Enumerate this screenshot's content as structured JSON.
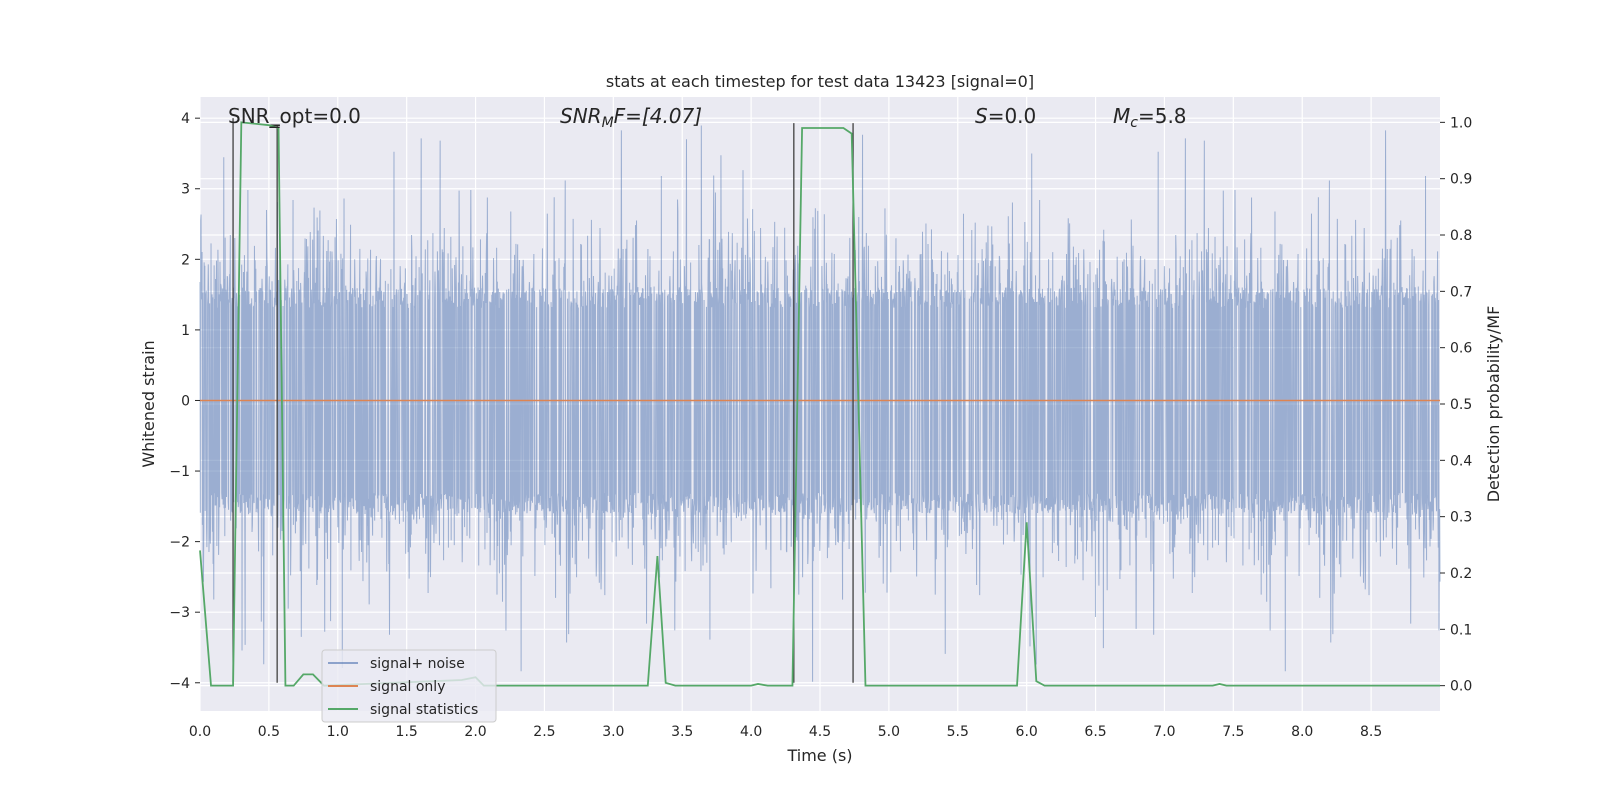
{
  "chart_data": {
    "type": "line",
    "title": "stats at each timestep for test data 13423 [signal=0]",
    "xlabel": "Time (s)",
    "ylabel": "Whitened strain",
    "y2label": "Detection probability/MF",
    "xlim": [
      0,
      9.0
    ],
    "ylim": [
      -4.4,
      4.3
    ],
    "y2lim": [
      -0.045,
      1.045
    ],
    "x_ticks": [
      0.0,
      0.5,
      1.0,
      1.5,
      2.0,
      2.5,
      3.0,
      3.5,
      4.0,
      4.5,
      5.0,
      5.5,
      6.0,
      6.5,
      7.0,
      7.5,
      8.0,
      8.5
    ],
    "x_tick_labels": [
      "0.0",
      "0.5",
      "1.0",
      "1.5",
      "2.0",
      "2.5",
      "3.0",
      "3.5",
      "4.0",
      "4.5",
      "5.0",
      "5.5",
      "6.0",
      "6.5",
      "7.0",
      "7.5",
      "8.0",
      "8.5"
    ],
    "y_ticks": [
      4,
      3,
      2,
      1,
      0,
      -1,
      -2,
      -3,
      -4
    ],
    "y_tick_labels": [
      "4",
      "3",
      "2",
      "1",
      "0",
      "−1",
      "−2",
      "−3",
      "−4"
    ],
    "y2_ticks": [
      1.0,
      0.9,
      0.8,
      0.7,
      0.6,
      0.5,
      0.4,
      0.3,
      0.2,
      0.1,
      0.0
    ],
    "y2_tick_labels": [
      "1.0",
      "0.9",
      "0.8",
      "0.7",
      "0.6",
      "0.5",
      "0.4",
      "0.3",
      "0.2",
      "0.1",
      "0.0"
    ],
    "grid": true,
    "legend": "lower-left",
    "annotations": {
      "snr_opt": "SNR_opt=0.0",
      "snr_mf_main": "SNR",
      "snr_mf_sub": "M",
      "snr_mf_rest": "F=[4.07]",
      "s_main": "S",
      "s_rest": "=0.0",
      "mc_main": "M",
      "mc_sub": "c",
      "mc_rest": "=5.8"
    },
    "series": [
      {
        "name": "signal+ noise",
        "color": "#4c72b0",
        "style": "noise",
        "typical_amplitude": 1.6,
        "peak_amplitude": 4.0
      },
      {
        "name": "signal only",
        "color": "#dd8452",
        "y": [
          0,
          0
        ]
      },
      {
        "name": "signal statistics",
        "color": "#55a868",
        "axis": "right",
        "points": [
          [
            0.0,
            0.24
          ],
          [
            0.08,
            0.0
          ],
          [
            0.24,
            0.0
          ],
          [
            0.3,
            1.0
          ],
          [
            0.5,
            0.995
          ],
          [
            0.57,
            0.99
          ],
          [
            0.62,
            0.0
          ],
          [
            0.68,
            0.0
          ],
          [
            0.75,
            0.02
          ],
          [
            0.82,
            0.02
          ],
          [
            0.9,
            0.0
          ],
          [
            1.9,
            0.01
          ],
          [
            2.0,
            0.015
          ],
          [
            2.06,
            0.0
          ],
          [
            3.25,
            0.0
          ],
          [
            3.32,
            0.23
          ],
          [
            3.38,
            0.005
          ],
          [
            3.45,
            0.0
          ],
          [
            4.0,
            0.0
          ],
          [
            4.05,
            0.003
          ],
          [
            4.12,
            0.0
          ],
          [
            4.3,
            0.0
          ],
          [
            4.37,
            0.99
          ],
          [
            4.67,
            0.99
          ],
          [
            4.73,
            0.98
          ],
          [
            4.83,
            0.0
          ],
          [
            4.9,
            0.0
          ],
          [
            5.93,
            0.0
          ],
          [
            6.0,
            0.29
          ],
          [
            6.07,
            0.008
          ],
          [
            6.13,
            0.0
          ],
          [
            7.35,
            0.0
          ],
          [
            7.4,
            0.003
          ],
          [
            7.45,
            0.0
          ],
          [
            9.0,
            0.0
          ]
        ]
      }
    ],
    "vertical_markers": [
      {
        "x": 0.24,
        "y_bottom": -4.0,
        "y_top": 4.0
      },
      {
        "x": 0.56,
        "y_bottom": -4.0,
        "y_top": 3.9
      },
      {
        "x": 4.31,
        "y_bottom": -4.0,
        "y_top": 3.93
      },
      {
        "x": 4.74,
        "y_bottom": -4.0,
        "y_top": 3.93
      }
    ]
  }
}
